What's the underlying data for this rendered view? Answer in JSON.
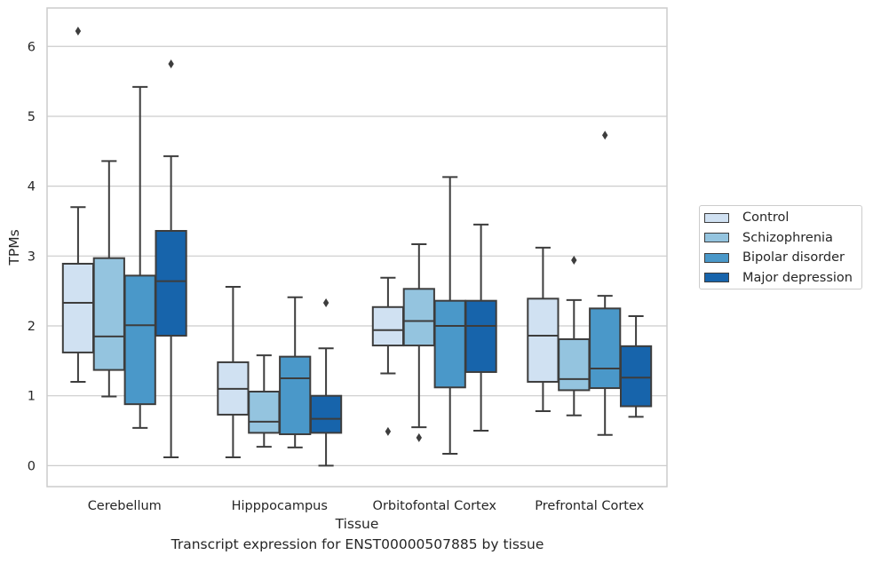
{
  "caption": "Transcript expression for ENST00000507885 by tissue",
  "legend": {
    "items": [
      {
        "label": "Control",
        "color": "#d0e1f2"
      },
      {
        "label": "Schizophrenia",
        "color": "#94c4df"
      },
      {
        "label": "Bipolar disorder",
        "color": "#4a98c9"
      },
      {
        "label": "Major depression",
        "color": "#1764ab"
      }
    ],
    "placement": "right-center-outside"
  },
  "chart_data": {
    "type": "box",
    "title": "",
    "xlabel": "Tissue",
    "ylabel": "TPMs",
    "ylim": [
      -0.3,
      6.55
    ],
    "yticks": [
      0,
      1,
      2,
      3,
      4,
      5,
      6
    ],
    "grid": "horizontal",
    "categories": [
      "Cerebellum",
      "Hipppocampus",
      "Orbitofontal Cortex",
      "Prefrontal Cortex"
    ],
    "series": [
      {
        "name": "Control",
        "color": "#d0e1f2",
        "boxes": [
          {
            "whislo": 1.2,
            "q1": 1.62,
            "med": 2.33,
            "q3": 2.89,
            "whishi": 3.7,
            "fliers": [
              6.22
            ]
          },
          {
            "whislo": 0.12,
            "q1": 0.73,
            "med": 1.1,
            "q3": 1.48,
            "whishi": 2.56,
            "fliers": []
          },
          {
            "whislo": 1.32,
            "q1": 1.72,
            "med": 1.94,
            "q3": 2.27,
            "whishi": 2.69,
            "fliers": [
              0.49
            ]
          },
          {
            "whislo": 0.78,
            "q1": 1.2,
            "med": 1.86,
            "q3": 2.39,
            "whishi": 3.12,
            "fliers": []
          }
        ]
      },
      {
        "name": "Schizophrenia",
        "color": "#94c4df",
        "boxes": [
          {
            "whislo": 0.99,
            "q1": 1.37,
            "med": 1.85,
            "q3": 2.97,
            "whishi": 4.36,
            "fliers": []
          },
          {
            "whislo": 0.27,
            "q1": 0.47,
            "med": 0.63,
            "q3": 1.06,
            "whishi": 1.58,
            "fliers": []
          },
          {
            "whislo": 0.55,
            "q1": 1.72,
            "med": 2.07,
            "q3": 2.53,
            "whishi": 3.17,
            "fliers": [
              0.4
            ]
          },
          {
            "whislo": 0.72,
            "q1": 1.08,
            "med": 1.24,
            "q3": 1.81,
            "whishi": 2.37,
            "fliers": [
              2.94
            ]
          }
        ]
      },
      {
        "name": "Bipolar disorder",
        "color": "#4a98c9",
        "boxes": [
          {
            "whislo": 0.54,
            "q1": 0.88,
            "med": 2.01,
            "q3": 2.72,
            "whishi": 5.42,
            "fliers": []
          },
          {
            "whislo": 0.26,
            "q1": 0.45,
            "med": 1.25,
            "q3": 1.56,
            "whishi": 2.41,
            "fliers": []
          },
          {
            "whislo": 0.17,
            "q1": 1.12,
            "med": 2.0,
            "q3": 2.36,
            "whishi": 4.13,
            "fliers": []
          },
          {
            "whislo": 0.44,
            "q1": 1.11,
            "med": 1.39,
            "q3": 2.25,
            "whishi": 2.43,
            "fliers": [
              4.73
            ]
          }
        ]
      },
      {
        "name": "Major depression",
        "color": "#1764ab",
        "boxes": [
          {
            "whislo": 0.12,
            "q1": 1.86,
            "med": 2.64,
            "q3": 3.36,
            "whishi": 4.43,
            "fliers": [
              5.75
            ]
          },
          {
            "whislo": 0.0,
            "q1": 0.47,
            "med": 0.67,
            "q3": 1.0,
            "whishi": 1.68,
            "fliers": [
              2.33
            ]
          },
          {
            "whislo": 0.5,
            "q1": 1.34,
            "med": 2.0,
            "q3": 2.36,
            "whishi": 3.45,
            "fliers": []
          },
          {
            "whislo": 0.7,
            "q1": 0.85,
            "med": 1.26,
            "q3": 1.71,
            "whishi": 2.14,
            "fliers": []
          }
        ]
      }
    ]
  }
}
